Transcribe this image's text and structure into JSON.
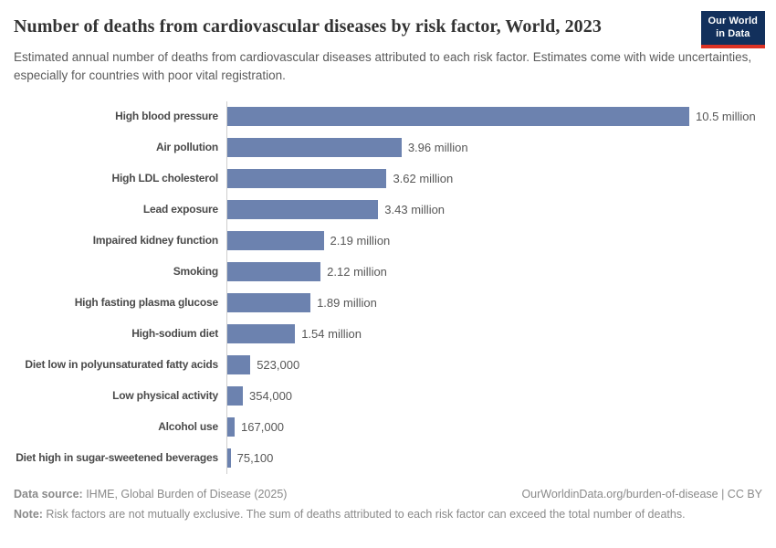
{
  "header": {
    "title": "Number of deaths from cardiovascular diseases by risk factor, World, 2023",
    "subtitle": "Estimated annual number of deaths from cardiovascular diseases attributed to each risk factor. Estimates come with wide uncertainties, especially for countries with poor vital registration.",
    "logo": {
      "line1": "Our World",
      "line2": "in Data"
    }
  },
  "chart_data": {
    "type": "bar",
    "orientation": "horizontal",
    "title": "Number of deaths from cardiovascular diseases by risk factor, World, 2023",
    "categories": [
      "High blood pressure",
      "Air pollution",
      "High LDL cholesterol",
      "Lead exposure",
      "Impaired kidney function",
      "Smoking",
      "High fasting plasma glucose",
      "High-sodium diet",
      "Diet low in polyunsaturated fatty acids",
      "Low physical activity",
      "Alcohol use",
      "Diet high in sugar-sweetened beverages"
    ],
    "values": [
      10500000,
      3960000,
      3620000,
      3430000,
      2190000,
      2120000,
      1890000,
      1540000,
      523000,
      354000,
      167000,
      75100
    ],
    "value_labels": [
      "10.5 million",
      "3.96 million",
      "3.62 million",
      "3.43 million",
      "2.19 million",
      "2.12 million",
      "1.89 million",
      "1.54 million",
      "523,000",
      "354,000",
      "167,000",
      "75,100"
    ],
    "xlim": [
      0,
      10500000
    ],
    "bar_color": "#6c82af",
    "grid": false,
    "legend_position": "none"
  },
  "footer": {
    "data_source_label": "Data source:",
    "data_source_text": " IHME, Global Burden of Disease (2025)",
    "attribution": "OurWorldinData.org/burden-of-disease | CC BY",
    "note_label": "Note:",
    "note_text": " Risk factors are not mutually exclusive. The sum of deaths attributed to each risk factor can exceed the total number of deaths."
  },
  "colors": {
    "bar": "#6c82af",
    "logo_navy": "#12305c",
    "logo_red": "#dc3224",
    "axis_line": "#cfcfcf"
  }
}
